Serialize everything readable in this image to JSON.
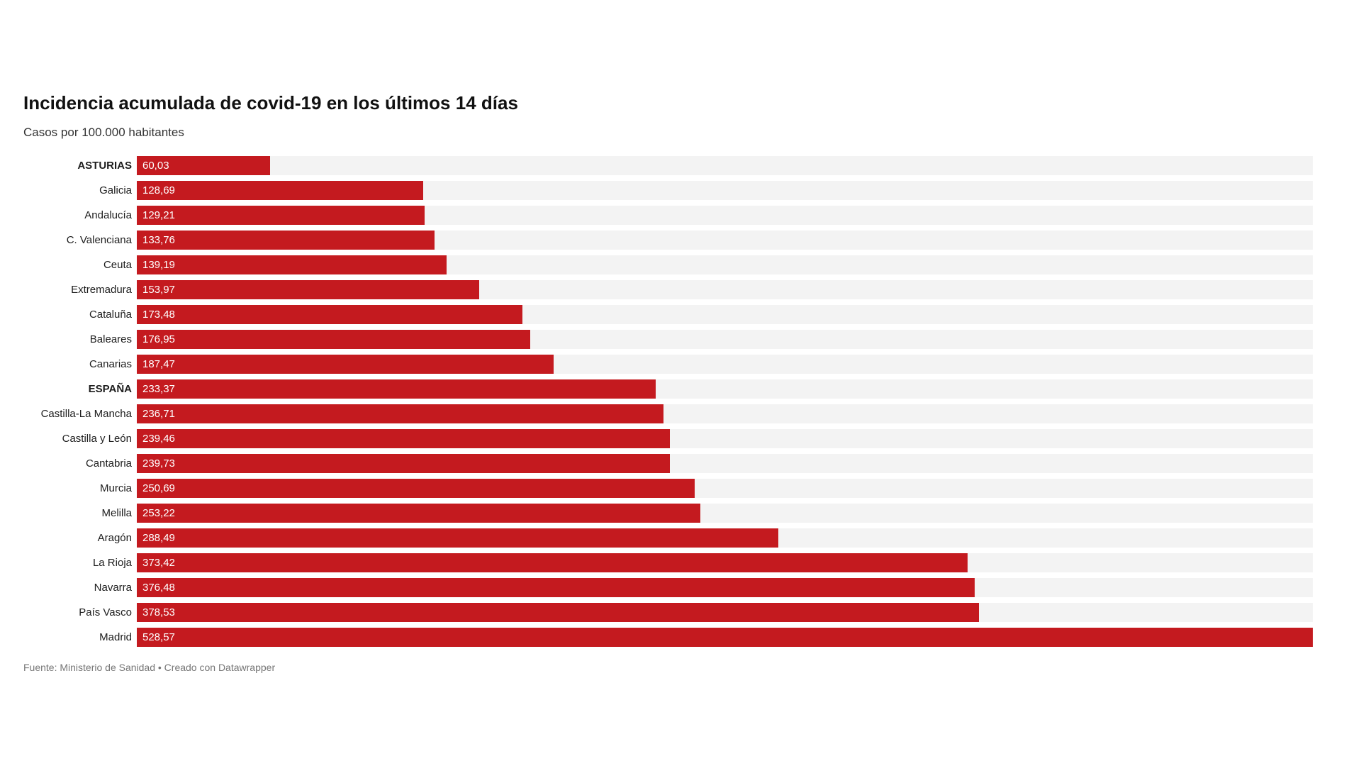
{
  "colors": {
    "bar": "#c41a1f",
    "track": "#f3f3f3",
    "value_label": "#ffffff",
    "category_label": "#1d1d1d",
    "title": "#111111",
    "subtitle": "#333333",
    "source": "#767676"
  },
  "footer": {
    "source": "Fuente: Ministerio de Sanidad • Creado con Datawrapper"
  },
  "chart_data": {
    "type": "bar",
    "orientation": "horizontal",
    "title": "Incidencia acumulada de covid-19 en los últimos 14 días",
    "subtitle": "Casos por 100.000 habitantes",
    "xlabel": "",
    "ylabel": "",
    "xlim": [
      0,
      528.57
    ],
    "grid": false,
    "legend": false,
    "value_format": "comma-decimal",
    "rows": [
      {
        "label": "ASTURIAS",
        "value": 60.03,
        "display": "60,03",
        "bold": true
      },
      {
        "label": "Galicia",
        "value": 128.69,
        "display": "128,69",
        "bold": false
      },
      {
        "label": "Andalucía",
        "value": 129.21,
        "display": "129,21",
        "bold": false
      },
      {
        "label": "C. Valenciana",
        "value": 133.76,
        "display": "133,76",
        "bold": false
      },
      {
        "label": "Ceuta",
        "value": 139.19,
        "display": "139,19",
        "bold": false
      },
      {
        "label": "Extremadura",
        "value": 153.97,
        "display": "153,97",
        "bold": false
      },
      {
        "label": "Cataluña",
        "value": 173.48,
        "display": "173,48",
        "bold": false
      },
      {
        "label": "Baleares",
        "value": 176.95,
        "display": "176,95",
        "bold": false
      },
      {
        "label": "Canarias",
        "value": 187.47,
        "display": "187,47",
        "bold": false
      },
      {
        "label": "ESPAÑA",
        "value": 233.37,
        "display": "233,37",
        "bold": true
      },
      {
        "label": "Castilla-La Mancha",
        "value": 236.71,
        "display": "236,71",
        "bold": false
      },
      {
        "label": "Castilla y León",
        "value": 239.46,
        "display": "239,46",
        "bold": false
      },
      {
        "label": "Cantabria",
        "value": 239.73,
        "display": "239,73",
        "bold": false
      },
      {
        "label": "Murcia",
        "value": 250.69,
        "display": "250,69",
        "bold": false
      },
      {
        "label": "Melilla",
        "value": 253.22,
        "display": "253,22",
        "bold": false
      },
      {
        "label": "Aragón",
        "value": 288.49,
        "display": "288,49",
        "bold": false
      },
      {
        "label": "La Rioja",
        "value": 373.42,
        "display": "373,42",
        "bold": false
      },
      {
        "label": "Navarra",
        "value": 376.48,
        "display": "376,48",
        "bold": false
      },
      {
        "label": "País Vasco",
        "value": 378.53,
        "display": "378,53",
        "bold": false
      },
      {
        "label": "Madrid",
        "value": 528.57,
        "display": "528,57",
        "bold": false
      }
    ]
  }
}
